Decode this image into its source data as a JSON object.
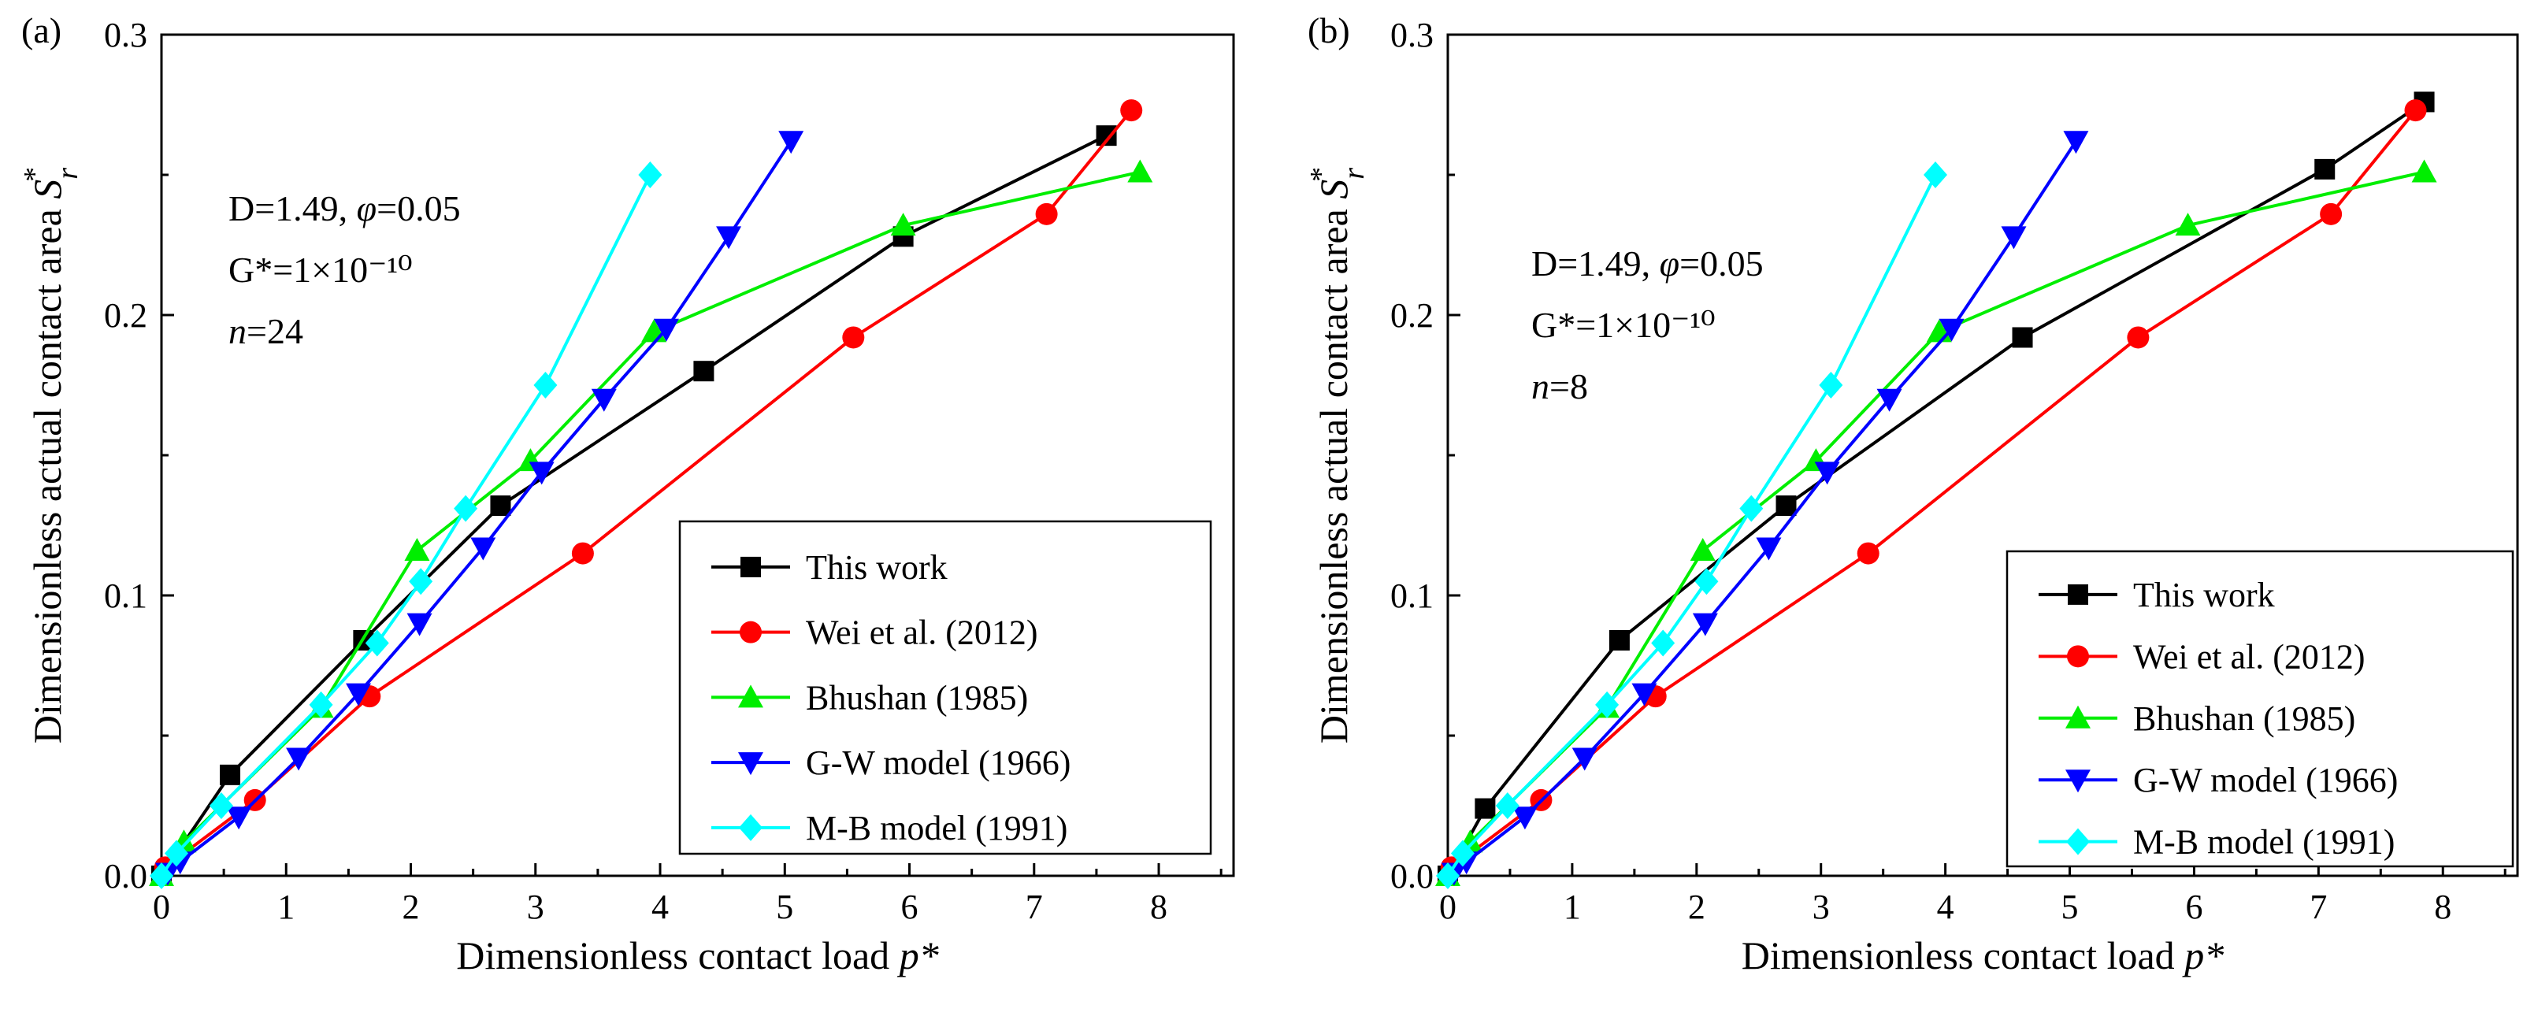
{
  "series_style": [
    {
      "name": "This work",
      "color": "#000000",
      "marker": "square"
    },
    {
      "name": "Wei et al. (2012)",
      "color": "#ff0000",
      "marker": "circle"
    },
    {
      "name": "Bhushan (1985)",
      "color": "#00ee00",
      "marker": "triangle-up"
    },
    {
      "name": "G-W model (1966)",
      "color": "#0000ff",
      "marker": "triangle-down"
    },
    {
      "name": "M-B model (1991)",
      "color": "#00ffff",
      "marker": "diamond"
    }
  ],
  "chart_data": [
    {
      "type": "line",
      "panel_label": "(a)",
      "xlabel": "Dimensionless contact load p*",
      "ylabel": "Dimensionless actual contact area S_r*",
      "xlim": [
        0,
        8.6
      ],
      "ylim": [
        0,
        0.3
      ],
      "xticks": [
        "0",
        "1",
        "2",
        "3",
        "4",
        "5",
        "6",
        "7",
        "8"
      ],
      "yticks": [
        "0.0",
        "0.1",
        "0.2",
        "0.3"
      ],
      "annotation": {
        "line1": "D=1.49, φ=0.05",
        "line2": "G*=1×10⁻¹⁰",
        "line3": "n=24"
      },
      "legend_position": "lower-right",
      "series": [
        {
          "name": "This work",
          "x": [
            0.0,
            0.55,
            1.62,
            2.72,
            4.35,
            5.95,
            7.58
          ],
          "y": [
            0.0,
            0.036,
            0.084,
            0.132,
            0.18,
            0.228,
            0.264
          ]
        },
        {
          "name": "Wei et al. (2012)",
          "x": [
            0.03,
            0.75,
            1.67,
            3.38,
            5.55,
            7.1,
            7.78
          ],
          "y": [
            0.003,
            0.027,
            0.064,
            0.115,
            0.192,
            0.236,
            0.273
          ]
        },
        {
          "name": "Bhushan (1985)",
          "x": [
            0.0,
            0.18,
            1.28,
            2.05,
            2.96,
            3.95,
            5.95,
            7.85
          ],
          "y": [
            0.0,
            0.012,
            0.06,
            0.116,
            0.148,
            0.194,
            0.232,
            0.251
          ]
        },
        {
          "name": "G-W model (1966)",
          "x": [
            0.05,
            0.15,
            0.62,
            1.1,
            1.58,
            2.07,
            2.58,
            3.05,
            3.55,
            4.05,
            4.55,
            5.05
          ],
          "y": [
            0.001,
            0.005,
            0.021,
            0.042,
            0.065,
            0.09,
            0.117,
            0.144,
            0.17,
            0.195,
            0.228,
            0.262
          ]
        },
        {
          "name": "M-B model (1991)",
          "x": [
            0.0,
            0.12,
            0.48,
            1.28,
            1.73,
            2.08,
            2.44,
            3.08,
            3.92
          ],
          "y": [
            0.0,
            0.008,
            0.025,
            0.061,
            0.083,
            0.105,
            0.131,
            0.175,
            0.25
          ]
        }
      ]
    },
    {
      "type": "line",
      "panel_label": "(b)",
      "xlabel": "Dimensionless contact load p*",
      "ylabel": "Dimensionless actual contact area S_r*",
      "xlim": [
        0,
        8.6
      ],
      "ylim": [
        0,
        0.3
      ],
      "xticks": [
        "0",
        "1",
        "2",
        "3",
        "4",
        "5",
        "6",
        "7",
        "8"
      ],
      "yticks": [
        "0.0",
        "0.1",
        "0.2",
        "0.3"
      ],
      "annotation": {
        "line1": "D=1.49, φ=0.05",
        "line2": "G*=1×10⁻¹⁰",
        "line3": "n=8"
      },
      "legend_position": "lower-right",
      "series": [
        {
          "name": "This work",
          "x": [
            0.0,
            0.3,
            1.38,
            2.72,
            4.62,
            7.05,
            7.85
          ],
          "y": [
            0.0,
            0.024,
            0.084,
            0.132,
            0.192,
            0.252,
            0.276
          ]
        },
        {
          "name": "Wei et al. (2012)",
          "x": [
            0.03,
            0.75,
            1.67,
            3.38,
            5.55,
            7.1,
            7.78
          ],
          "y": [
            0.003,
            0.027,
            0.064,
            0.115,
            0.192,
            0.236,
            0.273
          ]
        },
        {
          "name": "Bhushan (1985)",
          "x": [
            0.0,
            0.18,
            1.28,
            2.05,
            2.96,
            3.95,
            5.95,
            7.85
          ],
          "y": [
            0.0,
            0.012,
            0.06,
            0.116,
            0.148,
            0.194,
            0.232,
            0.251
          ]
        },
        {
          "name": "G-W model (1966)",
          "x": [
            0.05,
            0.15,
            0.62,
            1.1,
            1.58,
            2.07,
            2.58,
            3.05,
            3.55,
            4.05,
            4.55,
            5.05
          ],
          "y": [
            0.001,
            0.005,
            0.021,
            0.042,
            0.065,
            0.09,
            0.117,
            0.144,
            0.17,
            0.195,
            0.228,
            0.262
          ]
        },
        {
          "name": "M-B model (1991)",
          "x": [
            0.0,
            0.12,
            0.48,
            1.28,
            1.73,
            2.08,
            2.44,
            3.08,
            3.92
          ],
          "y": [
            0.0,
            0.008,
            0.025,
            0.061,
            0.083,
            0.105,
            0.131,
            0.175,
            0.25
          ]
        }
      ]
    }
  ]
}
